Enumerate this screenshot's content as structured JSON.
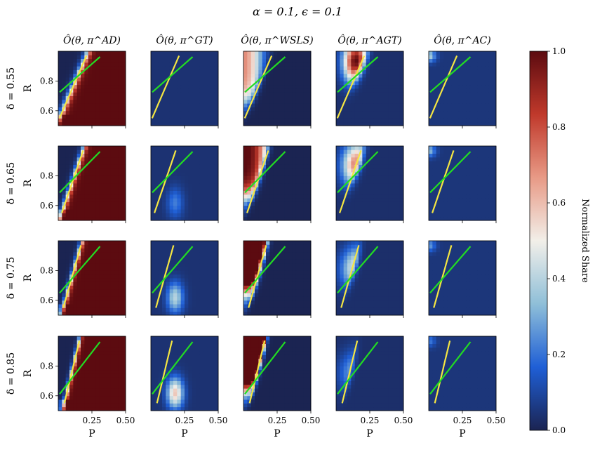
{
  "chart_data": {
    "type": "heatmap",
    "title": "α = 0.1,  ϵ = 0.1",
    "xlabel": "P",
    "ylabel": "R",
    "xlim": [
      0.0,
      0.5
    ],
    "ylim": [
      0.5,
      1.0
    ],
    "xticks": [
      "0.25",
      "0.50"
    ],
    "yticks": [
      "0.6",
      "0.8"
    ],
    "column_titles": [
      "Ô(θ, π^AD)",
      "Ô(θ, π^GT)",
      "Ô(θ, π^WSLS)",
      "Ô(θ, π^AGT)",
      "Ô(θ, π^AC)"
    ],
    "row_titles": [
      "δ = 0.55",
      "δ = 0.65",
      "δ = 0.75",
      "δ = 0.85"
    ],
    "strategies": [
      "AD",
      "GT",
      "WSLS",
      "AGT",
      "AC"
    ],
    "deltas": [
      0.55,
      0.65,
      0.75,
      0.85
    ],
    "colorbar": {
      "label": "Normalized Share",
      "ticks": [
        "0.0",
        "0.2",
        "0.4",
        "0.6",
        "0.8",
        "1.0"
      ],
      "range": [
        0.0,
        1.0
      ],
      "colormap": [
        "#1b2452",
        "#1f5fd6",
        "#8fbfd8",
        "#f2efe9",
        "#e89a86",
        "#c0392b",
        "#5c0b10"
      ]
    },
    "contour_levels": [
      "0.1",
      "0.9"
    ],
    "contour_color": "#f5e642",
    "reference_line_color": "#22dd22",
    "grid": false
  }
}
